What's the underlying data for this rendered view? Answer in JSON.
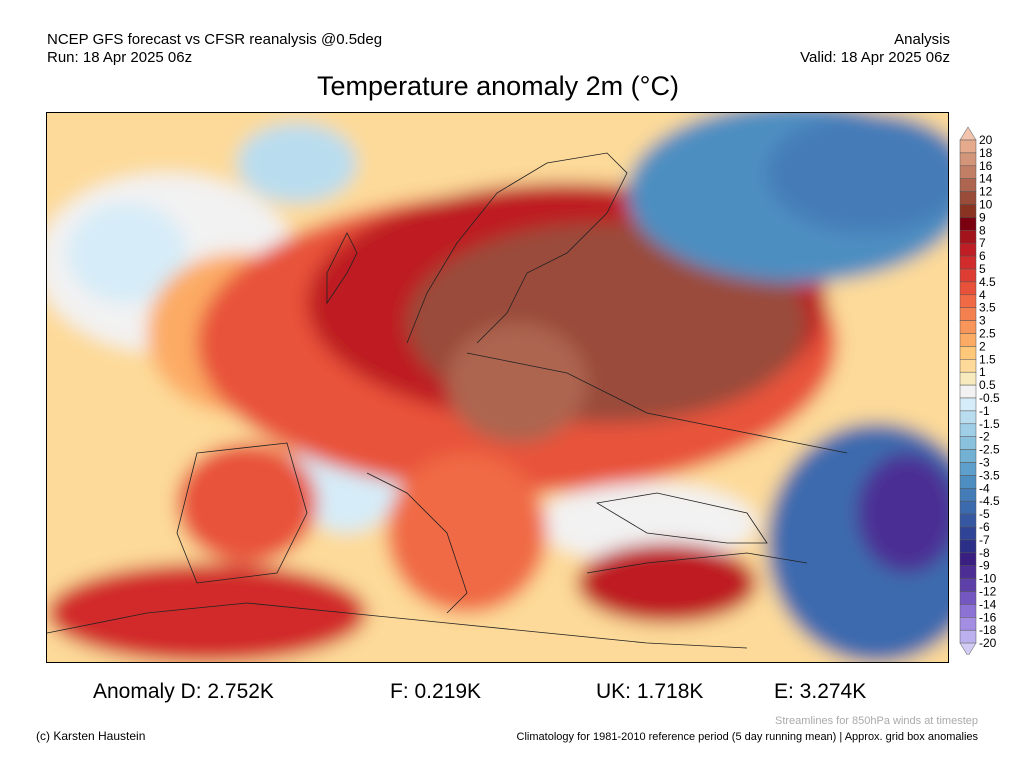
{
  "header": {
    "model": "NCEP GFS forecast vs CFSR reanalysis @0.5deg",
    "run": "Run: 18 Apr 2025 06z",
    "type": "Analysis",
    "valid": "Valid: 18 Apr 2025 06z",
    "title": "Temperature anomaly 2m (°C)"
  },
  "stats": {
    "anomaly_d": "Anomaly D: 2.752K",
    "f": "F: 0.219K",
    "uk": "UK: 1.718K",
    "e": "E: 3.274K"
  },
  "footer": {
    "copyright": "(c) Karsten Haustein",
    "streamlines": "Streamlines for 850hPa winds at timestep",
    "climatology": "Climatology for 1981-2010 reference period (5 day running mean) | Approx. grid box anomalies"
  },
  "colorbar": {
    "labels": [
      "20",
      "18",
      "16",
      "14",
      "12",
      "10",
      "9",
      "8",
      "7",
      "6",
      "5",
      "4.5",
      "4",
      "3.5",
      "3",
      "2.5",
      "2",
      "1.5",
      "1",
      "0.5",
      "-0.5",
      "-1",
      "-1.5",
      "-2",
      "-2.5",
      "-3",
      "-3.5",
      "-4",
      "-4.5",
      "-5",
      "-6",
      "-7",
      "-8",
      "-9",
      "-10",
      "-12",
      "-14",
      "-16",
      "-18",
      "-20"
    ],
    "top_triangle": "#f2c4ad",
    "bottom_triangle": "#d2ccf4",
    "colors": [
      "#e5a98c",
      "#d4967a",
      "#c27f66",
      "#ad6550",
      "#9a4c3a",
      "#8a3323",
      "#7a0010",
      "#a3141c",
      "#be1e24",
      "#d22b2b",
      "#de3d33",
      "#e8523a",
      "#f06a45",
      "#f48050",
      "#f8955a",
      "#fcab65",
      "#fec77a",
      "#fdda99",
      "#f7eabd",
      "#f2f2f2",
      "#d6ecf8",
      "#b9ddef",
      "#9fcfe6",
      "#8ac1dc",
      "#72b0d4",
      "#5f9fcb",
      "#4e8ec1",
      "#447cb8",
      "#3c6aae",
      "#3658a3",
      "#2f4496",
      "#2c2f87",
      "#3a1f83",
      "#4b2d94",
      "#5f40a9",
      "#7557c2",
      "#8d72d6",
      "#a48ee3",
      "#bdb0ef"
    ]
  }
}
